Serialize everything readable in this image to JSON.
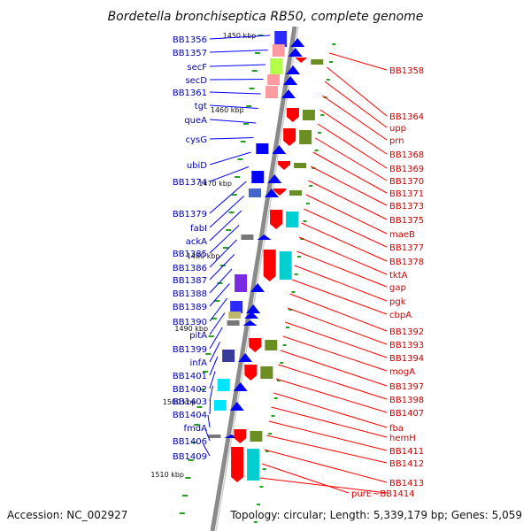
{
  "title": "Bordetella bronchiseptica RB50, complete genome",
  "footer": {
    "accession": "Accession: NC_002927",
    "topology": "Topology: circular; Length: 5,339,179 bp; Genes: 5,059"
  },
  "colors": {
    "forward_strand_label": "#0000b4",
    "reverse_strand_label": "#c80000",
    "backbone": "#999999",
    "tick": "#22a022"
  },
  "scale_ticks": [
    "1450 kbp",
    "1460 kbp",
    "1470 kbp",
    "1480 kbp",
    "1490 kbp",
    "1500 kbp",
    "1510 kbp"
  ],
  "left_labels": [
    "BB1356",
    "BB1357",
    "secF",
    "secD",
    "BB1361",
    "tgt",
    "queA",
    "cysG",
    "ubiD",
    "BB1374",
    "BB1379",
    "fabI",
    "ackA",
    "BB1385",
    "BB1386",
    "BB1387",
    "BB1388",
    "BB1389",
    "BB1390",
    "pitA",
    "BB1399",
    "infA",
    "BB1401",
    "BB1402",
    "BB1403",
    "BB1404",
    "fmdA",
    "BB1406",
    "BB1409"
  ],
  "right_labels": [
    "BB1358",
    "BB1364",
    "upp",
    "prn",
    "BB1368",
    "BB1369",
    "BB1370",
    "BB1371",
    "BB1373",
    "BB1375",
    "maeB",
    "BB1377",
    "BB1378",
    "tktA",
    "gap",
    "pgk",
    "cbpA",
    "BB1392",
    "BB1393",
    "BB1394",
    "mogA",
    "BB1397",
    "BB1398",
    "BB1407",
    "fba",
    "hemH",
    "BB1411",
    "BB1412",
    "BB1413",
    "purE",
    "BB1414"
  ]
}
